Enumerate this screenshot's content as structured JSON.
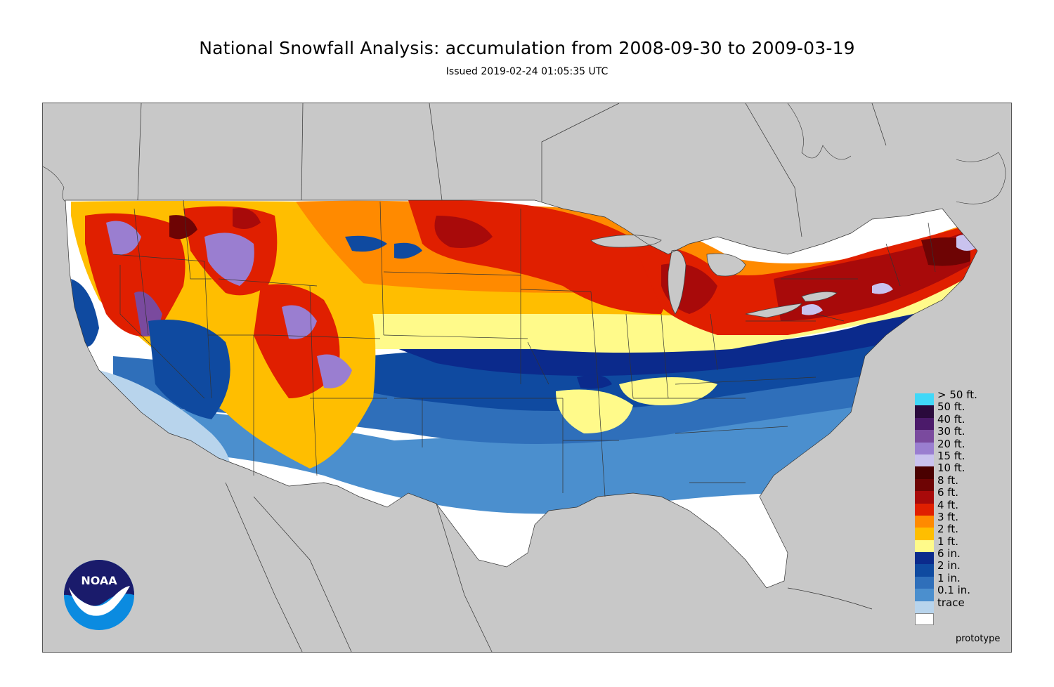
{
  "header": {
    "title": "National Snowfall Analysis: accumulation from 2008-09-30 to 2009-03-19",
    "subtitle": "Issued 2019-02-24 01:05:35 UTC"
  },
  "logo": {
    "text": "NOAA"
  },
  "footer": {
    "note": "prototype"
  },
  "legend": {
    "items": [
      {
        "label": "> 50 ft.",
        "color": "#40d8f8"
      },
      {
        "label": "50 ft.",
        "color": "#2a0a3c"
      },
      {
        "label": "40 ft.",
        "color": "#4b1a6a"
      },
      {
        "label": "30 ft.",
        "color": "#7a4a9e"
      },
      {
        "label": "20 ft.",
        "color": "#9a7ed0"
      },
      {
        "label": "15 ft.",
        "color": "#c9c2ee"
      },
      {
        "label": "10 ft.",
        "color": "#4a0000"
      },
      {
        "label": "8 ft.",
        "color": "#6e0404"
      },
      {
        "label": "6 ft.",
        "color": "#a80a0a"
      },
      {
        "label": "4 ft.",
        "color": "#e01f00"
      },
      {
        "label": "3 ft.",
        "color": "#ff8a00"
      },
      {
        "label": "2 ft.",
        "color": "#ffbe00"
      },
      {
        "label": "1 ft.",
        "color": "#fffa8a"
      },
      {
        "label": "6 in.",
        "color": "#0b2a8c"
      },
      {
        "label": "2 in.",
        "color": "#0f4aa0"
      },
      {
        "label": "1 in.",
        "color": "#2f6fba"
      },
      {
        "label": "0.1 in.",
        "color": "#4b8fce"
      },
      {
        "label": "trace",
        "color": "#b8d4ec"
      },
      {
        "label": "",
        "color": "#ffffff"
      }
    ]
  },
  "colors": {
    "land_outside": "#c8c8c8",
    "water": "#c8c8c8",
    "border_lines": "#333333"
  }
}
